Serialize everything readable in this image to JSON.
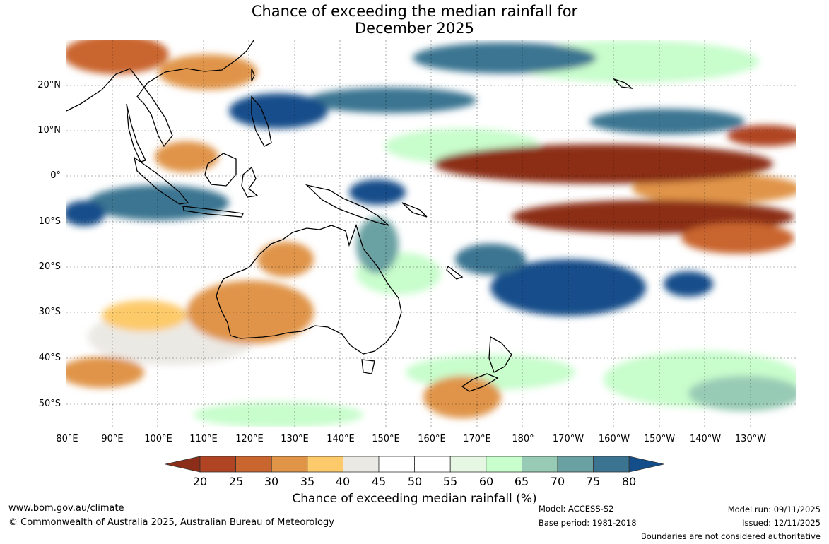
{
  "header": {
    "title_line1": "Chance of exceeding the median rainfall for",
    "title_line2": "December 2025"
  },
  "map": {
    "lat_labels": [
      "20°N",
      "10°N",
      "0°",
      "10°S",
      "20°S",
      "30°S",
      "40°S",
      "50°S"
    ],
    "lon_labels": [
      "80°E",
      "90°E",
      "100°E",
      "110°E",
      "120°E",
      "130°E",
      "140°E",
      "150°E",
      "160°E",
      "170°E",
      "180°",
      "170°W",
      "160°W",
      "150°W",
      "140°W",
      "130°W"
    ]
  },
  "colorbar": {
    "ticks": [
      "20",
      "25",
      "30",
      "35",
      "40",
      "45",
      "50",
      "55",
      "60",
      "65",
      "70",
      "75",
      "80"
    ],
    "colors": [
      "#8c2d19",
      "#b04423",
      "#c9652f",
      "#e09448",
      "#fdca6b",
      "#ebe9e4",
      "#ffffff",
      "#ffffff",
      "#e6f7e4",
      "#c8fdcc",
      "#98cbb5",
      "#6aa1a3",
      "#3a7491",
      "#134e8a"
    ],
    "title": "Chance of exceeding median rainfall (%)"
  },
  "footer": {
    "website": "www.bom.gov.au/climate",
    "copyright": "© Commonwealth of Australia 2025, Australian Bureau of Meteorology",
    "model": "Model: ACCESS-S2",
    "base_period": "Base period: 1981-2018",
    "model_run": "Model run: 09/11/2025",
    "issued": "Issued: 12/11/2025",
    "disclaimer": "Boundaries are not considered authoritative"
  }
}
